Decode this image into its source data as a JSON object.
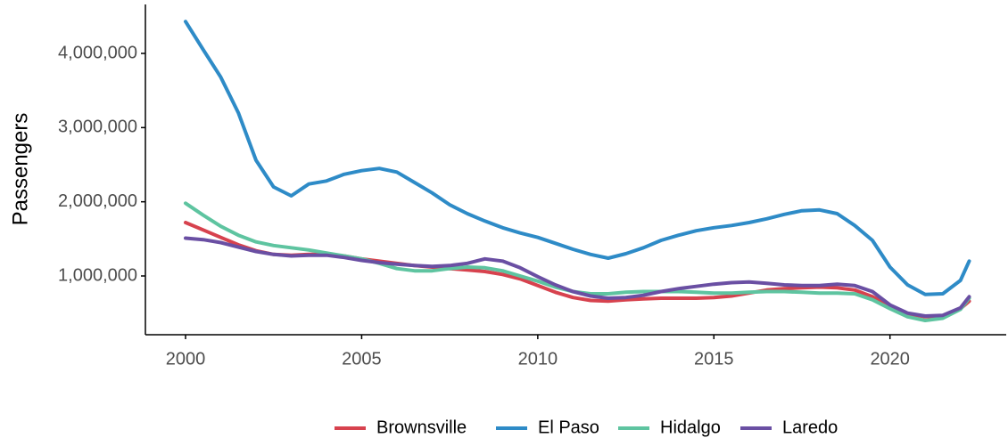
{
  "chart_data": {
    "type": "line",
    "y_label": "Passengers",
    "x": [
      2000,
      2000.5,
      2001,
      2001.5,
      2002,
      2002.5,
      2003,
      2003.5,
      2004,
      2004.5,
      2005,
      2005.5,
      2006,
      2006.5,
      2007,
      2007.5,
      2008,
      2008.5,
      2009,
      2009.5,
      2010,
      2010.5,
      2011,
      2011.5,
      2012,
      2012.5,
      2013,
      2013.5,
      2014,
      2014.5,
      2015,
      2015.5,
      2016,
      2016.5,
      2017,
      2017.5,
      2018,
      2018.5,
      2019,
      2019.5,
      2020,
      2020.5,
      2021,
      2021.5,
      2022,
      2022.25
    ],
    "series": [
      {
        "name": "Brownsville",
        "color": "#d7424e",
        "values": [
          1720000,
          1620000,
          1520000,
          1420000,
          1340000,
          1290000,
          1280000,
          1290000,
          1290000,
          1270000,
          1230000,
          1200000,
          1170000,
          1140000,
          1120000,
          1100000,
          1080000,
          1060000,
          1020000,
          960000,
          870000,
          780000,
          710000,
          670000,
          660000,
          680000,
          690000,
          700000,
          700000,
          700000,
          710000,
          730000,
          770000,
          810000,
          830000,
          840000,
          850000,
          840000,
          810000,
          720000,
          600000,
          490000,
          450000,
          460000,
          560000,
          660000
        ]
      },
      {
        "name": "El Paso",
        "color": "#2e8bc7",
        "values": [
          4430000,
          4050000,
          3680000,
          3200000,
          2560000,
          2200000,
          2080000,
          2240000,
          2280000,
          2370000,
          2420000,
          2450000,
          2400000,
          2260000,
          2120000,
          1960000,
          1840000,
          1740000,
          1650000,
          1580000,
          1520000,
          1440000,
          1360000,
          1290000,
          1240000,
          1300000,
          1380000,
          1480000,
          1550000,
          1610000,
          1650000,
          1680000,
          1720000,
          1770000,
          1830000,
          1880000,
          1890000,
          1840000,
          1680000,
          1480000,
          1120000,
          880000,
          750000,
          760000,
          940000,
          1200000
        ]
      },
      {
        "name": "Hidalgo",
        "color": "#5ec4a0",
        "values": [
          1980000,
          1820000,
          1670000,
          1550000,
          1460000,
          1410000,
          1380000,
          1350000,
          1310000,
          1270000,
          1230000,
          1170000,
          1100000,
          1070000,
          1070000,
          1100000,
          1120000,
          1110000,
          1070000,
          1000000,
          930000,
          850000,
          790000,
          760000,
          760000,
          780000,
          790000,
          790000,
          790000,
          780000,
          770000,
          770000,
          780000,
          790000,
          790000,
          780000,
          770000,
          770000,
          760000,
          680000,
          560000,
          450000,
          400000,
          430000,
          550000,
          700000
        ]
      },
      {
        "name": "Laredo",
        "color": "#6a4fa3",
        "values": [
          1510000,
          1490000,
          1450000,
          1390000,
          1330000,
          1290000,
          1270000,
          1280000,
          1280000,
          1250000,
          1210000,
          1180000,
          1160000,
          1140000,
          1130000,
          1140000,
          1170000,
          1230000,
          1200000,
          1110000,
          990000,
          880000,
          790000,
          730000,
          700000,
          710000,
          740000,
          790000,
          830000,
          860000,
          890000,
          910000,
          920000,
          900000,
          880000,
          870000,
          870000,
          890000,
          870000,
          790000,
          610000,
          500000,
          460000,
          470000,
          570000,
          720000
        ]
      }
    ],
    "xlim": [
      1998.86,
      2023.3
    ],
    "ylim": [
      208000,
      4660000
    ],
    "xticks": [
      2000,
      2005,
      2010,
      2015,
      2020
    ],
    "yticks": [
      {
        "value": 1000000,
        "label": "1,000,000"
      },
      {
        "value": 2000000,
        "label": "2,000,000"
      },
      {
        "value": 3000000,
        "label": "3,000,000"
      },
      {
        "value": 4000000,
        "label": "4,000,000"
      }
    ],
    "legend": "bottom"
  }
}
